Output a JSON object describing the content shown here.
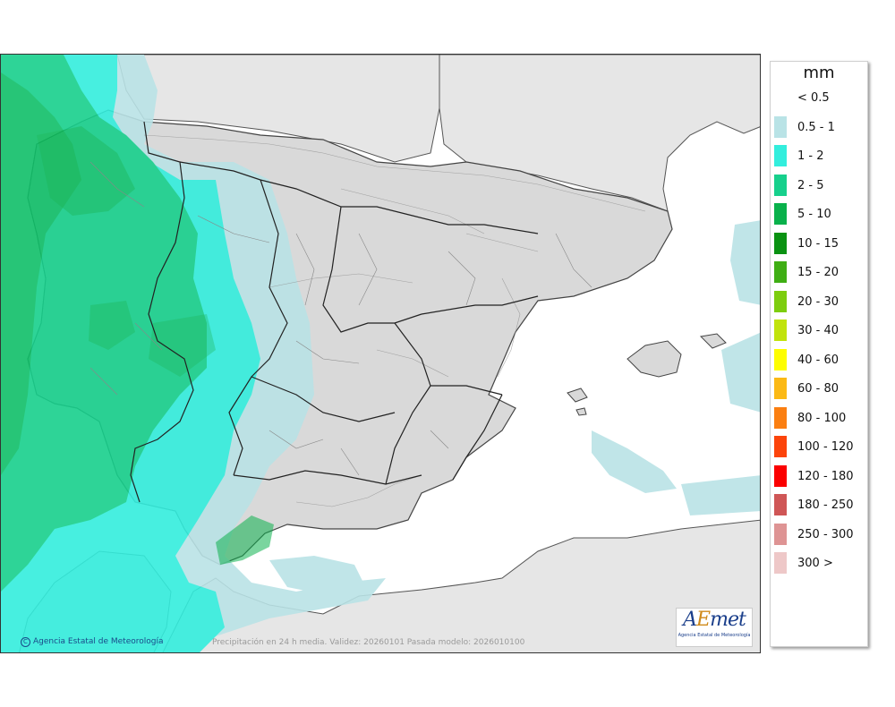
{
  "legend": {
    "unit": "mm",
    "items": [
      {
        "label": "< 0.5",
        "color": "#ffffff"
      },
      {
        "label": "0.5 - 1",
        "color": "#b9e3e6"
      },
      {
        "label": "1 - 2",
        "color": "#33eedd"
      },
      {
        "label": "2 - 5",
        "color": "#17d08c"
      },
      {
        "label": "5 - 10",
        "color": "#09b14b"
      },
      {
        "label": "10 - 15",
        "color": "#0a9212"
      },
      {
        "label": "15 - 20",
        "color": "#3fae14"
      },
      {
        "label": "20 - 30",
        "color": "#7dcd0e"
      },
      {
        "label": "30 - 40",
        "color": "#c1e30c"
      },
      {
        "label": "40 - 60",
        "color": "#fdfd00"
      },
      {
        "label": "60 - 80",
        "color": "#fbb915"
      },
      {
        "label": "80 - 100",
        "color": "#fb7f11"
      },
      {
        "label": "100 - 120",
        "color": "#fc440b"
      },
      {
        "label": "120 - 180",
        "color": "#fb0000"
      },
      {
        "label": "180 - 250",
        "color": "#cf5656"
      },
      {
        "label": "250 - 300",
        "color": "#de9494"
      },
      {
        "label": "300 >",
        "color": "#eec8c8"
      }
    ]
  },
  "footer": {
    "credit": "Agencia Estatal de Meteorología",
    "caption": "Precipitación en 24 h media. Validez: 20260101 Pasada modelo: 2026010100"
  },
  "logo": {
    "wordmark_a": "A",
    "wordmark_e": "E",
    "wordmark_rest": "met",
    "subtitle": "Agencia Estatal de Meteorología"
  },
  "colors": {
    "sea": "#ffffff",
    "land": "#e6e6e6",
    "spain": "#d9d9d9",
    "border": "#333333"
  }
}
